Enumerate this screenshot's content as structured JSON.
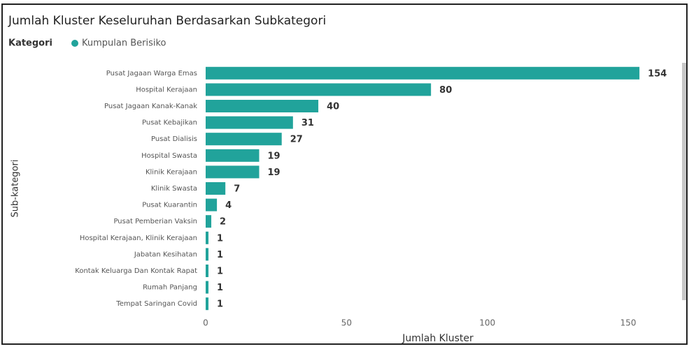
{
  "chart_data": {
    "type": "bar",
    "orientation": "horizontal",
    "title": "Jumlah Kluster Keseluruhan Berdasarkan Subkategori",
    "legend_title": "Kategori",
    "series": [
      {
        "name": "Kumpulan Berisiko",
        "color": "#21a39b",
        "values": [
          154,
          80,
          40,
          31,
          27,
          19,
          19,
          7,
          4,
          2,
          1,
          1,
          1,
          1,
          1
        ]
      }
    ],
    "categories": [
      "Pusat Jagaan Warga Emas",
      "Hospital Kerajaan",
      "Pusat Jagaan Kanak-Kanak",
      "Pusat Kebajikan",
      "Pusat Dialisis",
      "Hospital Swasta",
      "Klinik Kerajaan",
      "Klinik Swasta",
      "Pusat Kuarantin",
      "Pusat Pemberian Vaksin",
      "Hospital Kerajaan, Klinik Kerajaan",
      "Jabatan Kesihatan",
      "Kontak Keluarga Dan Kontak Rapat",
      "Rumah Panjang",
      "Tempat Saringan Covid"
    ],
    "x_label": "Jumlah Kluster",
    "y_label": "Sub-kategori",
    "xlim": [
      0,
      160
    ],
    "xticks": [
      0,
      50,
      100,
      150
    ],
    "grid": false
  }
}
